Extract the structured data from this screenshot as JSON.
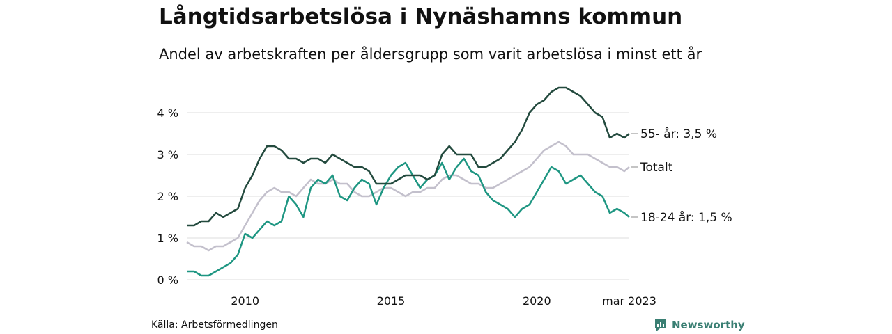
{
  "title": "Långtidsarbetslösa i Nynäshamns kommun",
  "subtitle": "Andel av arbetskraften per åldersgrupp som varit arbetslösa i minst ett år",
  "source": "Källa: Arbetsförmedlingen",
  "brand": "Newsworthy",
  "colors": {
    "older": "#234a3e",
    "total": "#c3c0cc",
    "young": "#1e9682",
    "grid": "#dddddd",
    "brand": "#3a7f73"
  },
  "chart_data": {
    "type": "line",
    "title": "Långtidsarbetslösa i Nynäshamns kommun",
    "subtitle": "Andel av arbetskraften per åldersgrupp som varit arbetslösa i minst ett år",
    "x_range": [
      2008.0,
      2023.17
    ],
    "ylim": [
      0,
      4.7
    ],
    "yticks": [
      0,
      1,
      2,
      3,
      4
    ],
    "ytick_labels": [
      "0 %",
      "1 %",
      "2 %",
      "3 %",
      "4 %"
    ],
    "xticks": [
      2010,
      2015,
      2020,
      2023.17
    ],
    "xtick_labels": [
      "2010",
      "2015",
      "2020",
      "mar 2023"
    ],
    "grid": true,
    "legend": "end-of-line labels",
    "series": [
      {
        "name": "55- år",
        "end_label": "55- år: 3,5 %",
        "color": "#234a3e",
        "x": [
          2008.0,
          2008.25,
          2008.5,
          2008.75,
          2009.0,
          2009.25,
          2009.5,
          2009.75,
          2010.0,
          2010.25,
          2010.5,
          2010.75,
          2011.0,
          2011.25,
          2011.5,
          2011.75,
          2012.0,
          2012.25,
          2012.5,
          2012.75,
          2013.0,
          2013.25,
          2013.5,
          2013.75,
          2014.0,
          2014.25,
          2014.5,
          2014.75,
          2015.0,
          2015.25,
          2015.5,
          2015.75,
          2016.0,
          2016.25,
          2016.5,
          2016.75,
          2017.0,
          2017.25,
          2017.5,
          2017.75,
          2018.0,
          2018.25,
          2018.5,
          2018.75,
          2019.0,
          2019.25,
          2019.5,
          2019.75,
          2020.0,
          2020.25,
          2020.5,
          2020.75,
          2021.0,
          2021.25,
          2021.5,
          2021.75,
          2022.0,
          2022.25,
          2022.5,
          2022.75,
          2023.0,
          2023.17
        ],
        "values": [
          1.3,
          1.3,
          1.4,
          1.4,
          1.6,
          1.5,
          1.6,
          1.7,
          2.2,
          2.5,
          2.9,
          3.2,
          3.2,
          3.1,
          2.9,
          2.9,
          2.8,
          2.9,
          2.9,
          2.8,
          3.0,
          2.9,
          2.8,
          2.7,
          2.7,
          2.6,
          2.3,
          2.3,
          2.3,
          2.4,
          2.5,
          2.5,
          2.5,
          2.4,
          2.5,
          3.0,
          3.2,
          3.0,
          3.0,
          3.0,
          2.7,
          2.7,
          2.8,
          2.9,
          3.1,
          3.3,
          3.6,
          4.0,
          4.2,
          4.3,
          4.5,
          4.6,
          4.6,
          4.5,
          4.4,
          4.2,
          4.0,
          3.9,
          3.4,
          3.5,
          3.4,
          3.5
        ]
      },
      {
        "name": "Totalt",
        "end_label": "Totalt",
        "color": "#c3c0cc",
        "x": [
          2008.0,
          2008.25,
          2008.5,
          2008.75,
          2009.0,
          2009.25,
          2009.5,
          2009.75,
          2010.0,
          2010.25,
          2010.5,
          2010.75,
          2011.0,
          2011.25,
          2011.5,
          2011.75,
          2012.0,
          2012.25,
          2012.5,
          2012.75,
          2013.0,
          2013.25,
          2013.5,
          2013.75,
          2014.0,
          2014.25,
          2014.5,
          2014.75,
          2015.0,
          2015.25,
          2015.5,
          2015.75,
          2016.0,
          2016.25,
          2016.5,
          2016.75,
          2017.0,
          2017.25,
          2017.5,
          2017.75,
          2018.0,
          2018.25,
          2018.5,
          2018.75,
          2019.0,
          2019.25,
          2019.5,
          2019.75,
          2020.0,
          2020.25,
          2020.5,
          2020.75,
          2021.0,
          2021.25,
          2021.5,
          2021.75,
          2022.0,
          2022.25,
          2022.5,
          2022.75,
          2023.0,
          2023.17
        ],
        "values": [
          0.9,
          0.8,
          0.8,
          0.7,
          0.8,
          0.8,
          0.9,
          1.0,
          1.3,
          1.6,
          1.9,
          2.1,
          2.2,
          2.1,
          2.1,
          2.0,
          2.2,
          2.4,
          2.3,
          2.3,
          2.4,
          2.3,
          2.3,
          2.1,
          2.0,
          2.0,
          2.1,
          2.2,
          2.2,
          2.1,
          2.0,
          2.1,
          2.1,
          2.2,
          2.2,
          2.4,
          2.5,
          2.5,
          2.4,
          2.3,
          2.3,
          2.2,
          2.2,
          2.3,
          2.4,
          2.5,
          2.6,
          2.7,
          2.9,
          3.1,
          3.2,
          3.3,
          3.2,
          3.0,
          3.0,
          3.0,
          2.9,
          2.8,
          2.7,
          2.7,
          2.6,
          2.7
        ]
      },
      {
        "name": "18-24 år",
        "end_label": "18-24 år: 1,5 %",
        "color": "#1e9682",
        "x": [
          2008.0,
          2008.25,
          2008.5,
          2008.75,
          2009.0,
          2009.25,
          2009.5,
          2009.75,
          2010.0,
          2010.25,
          2010.5,
          2010.75,
          2011.0,
          2011.25,
          2011.5,
          2011.75,
          2012.0,
          2012.25,
          2012.5,
          2012.75,
          2013.0,
          2013.25,
          2013.5,
          2013.75,
          2014.0,
          2014.25,
          2014.5,
          2014.75,
          2015.0,
          2015.25,
          2015.5,
          2015.75,
          2016.0,
          2016.25,
          2016.5,
          2016.75,
          2017.0,
          2017.25,
          2017.5,
          2017.75,
          2018.0,
          2018.25,
          2018.5,
          2018.75,
          2019.0,
          2019.25,
          2019.5,
          2019.75,
          2020.0,
          2020.25,
          2020.5,
          2020.75,
          2021.0,
          2021.25,
          2021.5,
          2021.75,
          2022.0,
          2022.25,
          2022.5,
          2022.75,
          2023.0,
          2023.17
        ],
        "values": [
          0.2,
          0.2,
          0.1,
          0.1,
          0.2,
          0.3,
          0.4,
          0.6,
          1.1,
          1.0,
          1.2,
          1.4,
          1.3,
          1.4,
          2.0,
          1.8,
          1.5,
          2.2,
          2.4,
          2.3,
          2.5,
          2.0,
          1.9,
          2.2,
          2.4,
          2.3,
          1.8,
          2.2,
          2.5,
          2.7,
          2.8,
          2.5,
          2.2,
          2.4,
          2.5,
          2.8,
          2.4,
          2.7,
          2.9,
          2.6,
          2.5,
          2.1,
          1.9,
          1.8,
          1.7,
          1.5,
          1.7,
          1.8,
          2.1,
          2.4,
          2.7,
          2.6,
          2.3,
          2.4,
          2.5,
          2.3,
          2.1,
          2.0,
          1.6,
          1.7,
          1.6,
          1.5
        ]
      }
    ]
  }
}
